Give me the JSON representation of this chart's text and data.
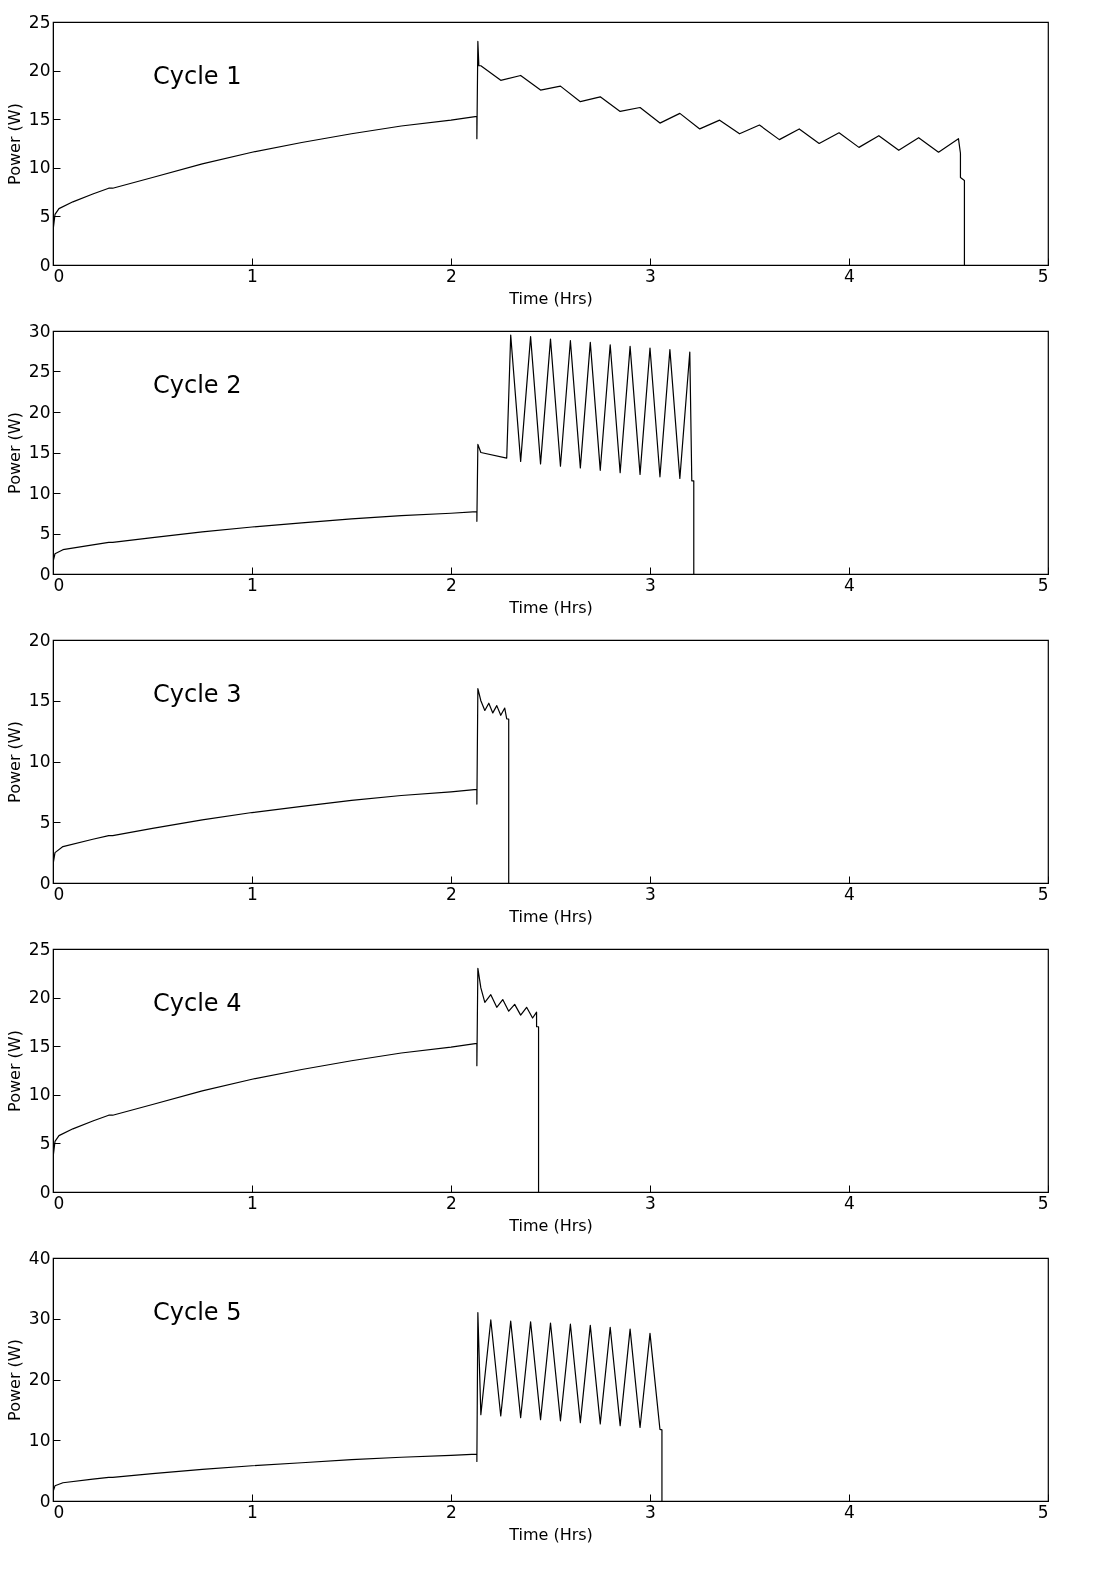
{
  "chart_data": [
    {
      "type": "line",
      "xlabel": "Time (Hrs)",
      "ylabel": "Power (W)",
      "annotations": [
        "Cycle 1"
      ],
      "color": "#000000",
      "grid": false,
      "xlim": [
        0,
        5
      ],
      "xticks": [
        0,
        1,
        2,
        3,
        4,
        5
      ],
      "ylim": [
        0,
        25
      ],
      "yticks": [
        0,
        5,
        10,
        15,
        20,
        25
      ],
      "x": [
        0,
        0.01,
        0.03,
        0.1,
        0.2,
        0.28,
        0.3,
        0.5,
        0.75,
        1.0,
        1.25,
        1.5,
        1.75,
        2.0,
        2.13,
        2.13,
        2.135,
        2.14,
        2.15,
        2.25,
        2.35,
        2.45,
        2.55,
        2.65,
        2.75,
        2.85,
        2.95,
        3.05,
        3.15,
        3.25,
        3.35,
        3.45,
        3.55,
        3.65,
        3.75,
        3.85,
        3.95,
        4.05,
        4.15,
        4.25,
        4.35,
        4.45,
        4.55,
        4.56,
        4.56,
        4.58,
        4.58
      ],
      "values": [
        3.5,
        5.2,
        5.8,
        6.5,
        7.3,
        7.9,
        7.9,
        9.0,
        10.4,
        11.6,
        12.6,
        13.5,
        14.3,
        14.9,
        15.3,
        13,
        23,
        20.5,
        20.5,
        19.0,
        19.5,
        18.0,
        18.4,
        16.8,
        17.3,
        15.8,
        16.2,
        14.6,
        15.6,
        14.0,
        14.9,
        13.5,
        14.4,
        12.9,
        14.0,
        12.5,
        13.6,
        12.1,
        13.3,
        11.8,
        13.1,
        11.6,
        13.0,
        11.5,
        9,
        8.7,
        0
      ]
    },
    {
      "type": "line",
      "xlabel": "Time (Hrs)",
      "ylabel": "Power (W)",
      "annotations": [
        "Cycle 2"
      ],
      "color": "#000000",
      "grid": false,
      "xlim": [
        0,
        5
      ],
      "xticks": [
        0,
        1,
        2,
        3,
        4,
        5
      ],
      "ylim": [
        0,
        30
      ],
      "yticks": [
        0,
        5,
        10,
        15,
        20,
        25,
        30
      ],
      "x": [
        0,
        0.01,
        0.05,
        0.2,
        0.28,
        0.3,
        0.5,
        0.75,
        1.0,
        1.25,
        1.5,
        1.75,
        2.0,
        2.13,
        2.13,
        2.135,
        2.15,
        2.28,
        2.3,
        2.35,
        2.4,
        2.45,
        2.5,
        2.55,
        2.6,
        2.65,
        2.7,
        2.75,
        2.8,
        2.85,
        2.9,
        2.95,
        3.0,
        3.05,
        3.1,
        3.15,
        3.2,
        3.21,
        3.22,
        3.22
      ],
      "values": [
        1.5,
        2.5,
        3.0,
        3.6,
        3.9,
        3.9,
        4.5,
        5.2,
        5.8,
        6.3,
        6.8,
        7.2,
        7.5,
        7.7,
        6.5,
        16,
        15,
        14.3,
        29.5,
        13.9,
        29.3,
        13.6,
        29.0,
        13.3,
        28.8,
        13.1,
        28.6,
        12.8,
        28.3,
        12.5,
        28.1,
        12.3,
        27.9,
        12.0,
        27.7,
        11.8,
        27.4,
        11.5,
        11.5,
        0
      ]
    },
    {
      "type": "line",
      "xlabel": "Time (Hrs)",
      "ylabel": "Power (W)",
      "annotations": [
        "Cycle 3"
      ],
      "color": "#000000",
      "grid": false,
      "xlim": [
        0,
        5
      ],
      "xticks": [
        0,
        1,
        2,
        3,
        4,
        5
      ],
      "ylim": [
        0,
        20
      ],
      "yticks": [
        0,
        5,
        10,
        15,
        20
      ],
      "x": [
        0,
        0.01,
        0.05,
        0.2,
        0.28,
        0.3,
        0.5,
        0.75,
        1.0,
        1.25,
        1.5,
        1.75,
        2.0,
        2.13,
        2.13,
        2.135,
        2.15,
        2.17,
        2.19,
        2.21,
        2.23,
        2.25,
        2.27,
        2.28,
        2.29,
        2.29
      ],
      "values": [
        1.5,
        2.5,
        3.0,
        3.6,
        3.9,
        3.9,
        4.5,
        5.2,
        5.8,
        6.3,
        6.8,
        7.2,
        7.5,
        7.7,
        6.5,
        16,
        15,
        14.2,
        14.8,
        14.0,
        14.6,
        13.8,
        14.4,
        13.5,
        13.5,
        0
      ]
    },
    {
      "type": "line",
      "xlabel": "Time (Hrs)",
      "ylabel": "Power (W)",
      "annotations": [
        "Cycle 4"
      ],
      "color": "#000000",
      "grid": false,
      "xlim": [
        0,
        5
      ],
      "xticks": [
        0,
        1,
        2,
        3,
        4,
        5
      ],
      "ylim": [
        0,
        25
      ],
      "yticks": [
        0,
        5,
        10,
        15,
        20,
        25
      ],
      "x": [
        0,
        0.01,
        0.03,
        0.1,
        0.2,
        0.28,
        0.3,
        0.5,
        0.75,
        1.0,
        1.25,
        1.5,
        1.75,
        2.0,
        2.13,
        2.13,
        2.135,
        2.15,
        2.17,
        2.2,
        2.23,
        2.26,
        2.29,
        2.32,
        2.35,
        2.38,
        2.41,
        2.43,
        2.43,
        2.44,
        2.44
      ],
      "values": [
        3.5,
        5.2,
        5.8,
        6.5,
        7.3,
        7.9,
        7.9,
        9.0,
        10.4,
        11.6,
        12.6,
        13.5,
        14.3,
        14.9,
        15.3,
        13,
        23,
        21,
        19.5,
        20.3,
        19.0,
        19.8,
        18.6,
        19.3,
        18.2,
        19.0,
        17.9,
        18.5,
        17,
        17,
        0
      ]
    },
    {
      "type": "line",
      "xlabel": "Time (Hrs)",
      "ylabel": "Power (W)",
      "annotations": [
        "Cycle 5"
      ],
      "color": "#000000",
      "grid": false,
      "xlim": [
        0,
        5
      ],
      "xticks": [
        0,
        1,
        2,
        3,
        4,
        5
      ],
      "ylim": [
        0,
        40
      ],
      "yticks": [
        0,
        10,
        20,
        30,
        40
      ],
      "x": [
        0,
        0.01,
        0.05,
        0.2,
        0.28,
        0.3,
        0.5,
        0.75,
        1.0,
        1.25,
        1.5,
        1.75,
        2.0,
        2.13,
        2.13,
        2.135,
        2.15,
        2.2,
        2.25,
        2.3,
        2.35,
        2.4,
        2.45,
        2.5,
        2.55,
        2.6,
        2.65,
        2.7,
        2.75,
        2.8,
        2.85,
        2.9,
        2.95,
        3.0,
        3.05,
        3.06,
        3.06
      ],
      "values": [
        1.5,
        2.5,
        3.0,
        3.6,
        3.9,
        3.9,
        4.5,
        5.2,
        5.8,
        6.3,
        6.8,
        7.2,
        7.5,
        7.7,
        6.5,
        31,
        14.2,
        29.8,
        14.0,
        29.6,
        13.7,
        29.5,
        13.4,
        29.3,
        13.2,
        29.1,
        12.9,
        28.9,
        12.7,
        28.6,
        12.4,
        28.3,
        12.1,
        27.6,
        11.8,
        11.7,
        0
      ]
    }
  ]
}
